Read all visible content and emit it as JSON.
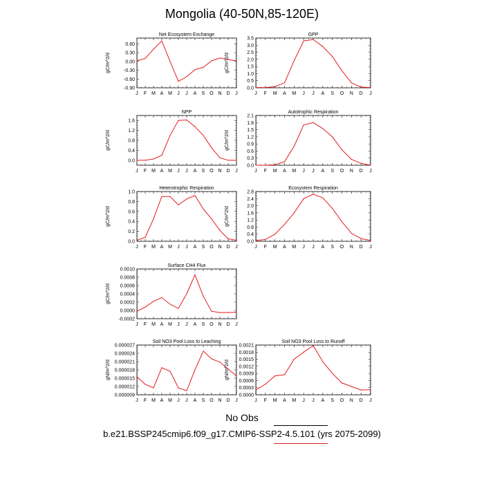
{
  "figure": {
    "title": "Mongolia (40-50N,85-120E)",
    "legend_no_obs": "No Obs",
    "case_name": "b.e21.BSSP245cmip6.f09_g17.CMIP6-SSP2-4.5.101 (yrs 2075-2099)",
    "line_color": "#e41a1c",
    "legend_case_color": "#e41a1c",
    "legend_obs_color": "#000000"
  },
  "chart_data": [
    {
      "type": "line",
      "title": "Net Ecosystem Exchange",
      "xlabel": "",
      "ylabel": "gC/m^2/d",
      "categories": [
        "J",
        "F",
        "M",
        "A",
        "M",
        "J",
        "J",
        "A",
        "S",
        "O",
        "N",
        "D",
        "J"
      ],
      "values": [
        0.02,
        0.1,
        0.42,
        0.7,
        0.0,
        -0.68,
        -0.52,
        -0.28,
        -0.2,
        0.02,
        0.12,
        0.06,
        0.02
      ],
      "ylim": [
        -0.9,
        0.8
      ],
      "yticks": [
        "-0.90",
        "-0.60",
        "-0.30",
        "0.00",
        "0.30",
        "0.60"
      ],
      "ytick_values": [
        -0.9,
        -0.6,
        -0.3,
        0.0,
        0.3,
        0.6
      ]
    },
    {
      "type": "line",
      "title": "GPP",
      "xlabel": "",
      "ylabel": "gC/m^2/d",
      "categories": [
        "J",
        "F",
        "M",
        "A",
        "M",
        "J",
        "J",
        "A",
        "S",
        "O",
        "N",
        "D",
        "J"
      ],
      "values": [
        0.02,
        0.02,
        0.08,
        0.35,
        1.9,
        3.3,
        3.4,
        2.9,
        2.2,
        1.2,
        0.35,
        0.05,
        0.02
      ],
      "ylim": [
        0,
        3.5
      ],
      "yticks": [
        "0.0",
        "0.5",
        "1.0",
        "1.5",
        "2.0",
        "2.5",
        "3.0",
        "3.5"
      ],
      "ytick_values": [
        0,
        0.5,
        1.0,
        1.5,
        2.0,
        2.5,
        3.0,
        3.5
      ]
    },
    {
      "type": "line",
      "title": "NPP",
      "xlabel": "",
      "ylabel": "gC/m^2/d",
      "categories": [
        "J",
        "F",
        "M",
        "A",
        "M",
        "J",
        "J",
        "A",
        "S",
        "O",
        "N",
        "D",
        "J"
      ],
      "values": [
        0.0,
        0.0,
        0.05,
        0.2,
        1.0,
        1.6,
        1.62,
        1.35,
        1.0,
        0.5,
        0.1,
        0.0,
        0.0
      ],
      "ylim": [
        -0.2,
        1.8
      ],
      "yticks": [
        "0.0",
        "0.4",
        "0.8",
        "1.2",
        "1.6"
      ],
      "ytick_values": [
        0.0,
        0.4,
        0.8,
        1.2,
        1.6
      ]
    },
    {
      "type": "line",
      "title": "Autotrophic Respiration",
      "xlabel": "",
      "ylabel": "gC/m^2/d",
      "categories": [
        "J",
        "F",
        "M",
        "A",
        "M",
        "J",
        "J",
        "A",
        "S",
        "O",
        "N",
        "D",
        "J"
      ],
      "values": [
        0.0,
        0.0,
        0.02,
        0.15,
        0.8,
        1.7,
        1.8,
        1.55,
        1.2,
        0.65,
        0.25,
        0.08,
        0.0
      ],
      "ylim": [
        0,
        2.1
      ],
      "yticks": [
        "0.0",
        "0.3",
        "0.6",
        "0.9",
        "1.2",
        "1.5",
        "1.8",
        "2.1"
      ],
      "ytick_values": [
        0,
        0.3,
        0.6,
        0.9,
        1.2,
        1.5,
        1.8,
        2.1
      ]
    },
    {
      "type": "line",
      "title": "Heterotrophic Respiration",
      "xlabel": "",
      "ylabel": "gC/m^2/d",
      "categories": [
        "J",
        "F",
        "M",
        "A",
        "M",
        "J",
        "J",
        "A",
        "S",
        "O",
        "N",
        "D",
        "J"
      ],
      "values": [
        0.02,
        0.08,
        0.45,
        0.9,
        0.9,
        0.73,
        0.85,
        0.92,
        0.65,
        0.45,
        0.22,
        0.05,
        0.02
      ],
      "ylim": [
        0,
        1.0
      ],
      "yticks": [
        "0.0",
        "0.2",
        "0.4",
        "0.6",
        "0.8",
        "1.0"
      ],
      "ytick_values": [
        0,
        0.2,
        0.4,
        0.6,
        0.8,
        1.0
      ]
    },
    {
      "type": "line",
      "title": "Ecosystem Respiration",
      "xlabel": "",
      "ylabel": "gC/m^2/d",
      "categories": [
        "J",
        "F",
        "M",
        "A",
        "M",
        "J",
        "J",
        "A",
        "S",
        "O",
        "N",
        "D",
        "J"
      ],
      "values": [
        0.05,
        0.1,
        0.4,
        0.95,
        1.6,
        2.4,
        2.65,
        2.45,
        1.85,
        1.1,
        0.45,
        0.15,
        0.05
      ],
      "ylim": [
        0,
        2.8
      ],
      "yticks": [
        "0.0",
        "0.4",
        "0.8",
        "1.2",
        "1.6",
        "2.0",
        "2.4",
        "2.8"
      ],
      "ytick_values": [
        0,
        0.4,
        0.8,
        1.2,
        1.6,
        2.0,
        2.4,
        2.8
      ]
    },
    {
      "type": "line",
      "title": "Surface CH4 Flux",
      "xlabel": "",
      "ylabel": "gC/m^2/d",
      "categories": [
        "J",
        "F",
        "M",
        "A",
        "M",
        "J",
        "J",
        "A",
        "S",
        "O",
        "N",
        "D",
        "J"
      ],
      "values": [
        -2e-05,
        8e-05,
        0.00022,
        0.00031,
        0.00015,
        5e-05,
        0.0004,
        0.00086,
        0.00034,
        -2e-05,
        -5e-05,
        -5e-05,
        -4e-05
      ],
      "ylim": [
        -0.0002,
        0.001
      ],
      "yticks": [
        "-0.0002",
        "0.0000",
        "0.0002",
        "0.0004",
        "0.0006",
        "0.0008",
        "0.0010"
      ],
      "ytick_values": [
        -0.0002,
        0.0,
        0.0002,
        0.0004,
        0.0006,
        0.0008,
        0.001
      ]
    },
    {
      "type": "line",
      "title": "Soil NO3 Pool Loss to Leaching",
      "xlabel": "",
      "ylabel": "gN/m^2/d",
      "categories": [
        "J",
        "F",
        "M",
        "A",
        "M",
        "J",
        "J",
        "A",
        "S",
        "O",
        "N",
        "D",
        "J"
      ],
      "values": [
        1.55e-05,
        1.28e-05,
        1.15e-05,
        1.88e-05,
        1.75e-05,
        1.15e-05,
        1.05e-05,
        1.8e-05,
        2.48e-05,
        2.2e-05,
        2.08e-05,
        1.83e-05,
        1.58e-05
      ],
      "ylim": [
        9e-06,
        2.7e-05
      ],
      "yticks": [
        "0.000009",
        "0.000012",
        "0.000015",
        "0.000018",
        "0.000021",
        "0.000024",
        "0.000027"
      ],
      "ytick_values": [
        9e-06,
        1.2e-05,
        1.5e-05,
        1.8e-05,
        2.1e-05,
        2.4e-05,
        2.7e-05
      ]
    },
    {
      "type": "line",
      "title": "Soil NO3 Pool Loss to Runoff",
      "xlabel": "",
      "ylabel": "gN/m^2/d",
      "categories": [
        "J",
        "F",
        "M",
        "A",
        "M",
        "J",
        "J",
        "A",
        "S",
        "O",
        "N",
        "D",
        "J"
      ],
      "values": [
        0.0002,
        0.00045,
        0.0008,
        0.00085,
        0.0015,
        0.0018,
        0.00208,
        0.0014,
        0.0009,
        0.0005,
        0.00035,
        0.0002,
        0.00022
      ],
      "ylim": [
        0,
        0.0021
      ],
      "yticks": [
        "0.0000",
        "0.0003",
        "0.0006",
        "0.0009",
        "0.0012",
        "0.0015",
        "0.0018",
        "0.0021"
      ],
      "ytick_values": [
        0,
        0.0003,
        0.0006,
        0.0009,
        0.0012,
        0.0015,
        0.0018,
        0.0021
      ]
    }
  ]
}
